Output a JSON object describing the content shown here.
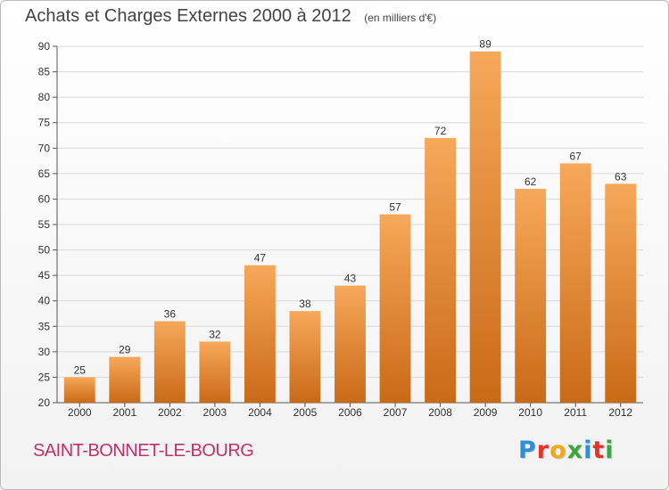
{
  "title": "Achats et Charges Externes 2000 à 2012",
  "unit_label": "(en milliers d'€)",
  "commune": "SAINT-BONNET-LE-BOURG",
  "logo": {
    "text": "Proxiti",
    "letter_colors": [
      "#2e8fd6",
      "#e2342a",
      "#f0a81c",
      "#3aa63c",
      "#2e8fd6",
      "#e2342a",
      "#3aa63c"
    ]
  },
  "colors": {
    "bar_top": "#f7a85a",
    "bar_bottom": "#c96a17",
    "grid": "#d9d9d9",
    "axis": "#555555"
  },
  "chart_data": {
    "type": "bar",
    "categories": [
      "2000",
      "2001",
      "2002",
      "2003",
      "2004",
      "2005",
      "2006",
      "2007",
      "2008",
      "2009",
      "2010",
      "2011",
      "2012"
    ],
    "values": [
      25,
      29,
      36,
      32,
      47,
      38,
      43,
      57,
      72,
      89,
      62,
      67,
      63
    ],
    "ylim": [
      20,
      90
    ],
    "yticks": [
      20,
      25,
      30,
      35,
      40,
      45,
      50,
      55,
      60,
      65,
      70,
      75,
      80,
      85,
      90
    ],
    "grid": true,
    "value_labels": true
  }
}
